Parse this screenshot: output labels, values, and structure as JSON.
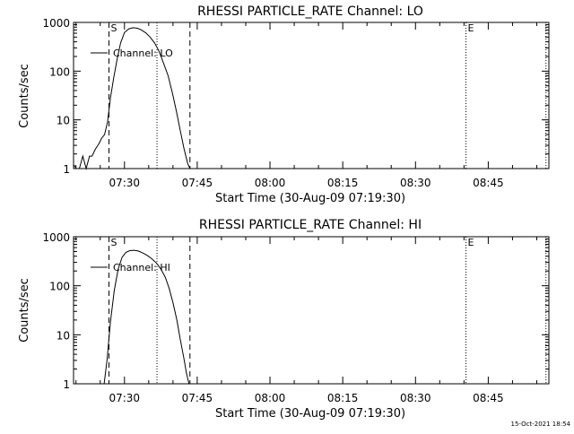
{
  "footer": {
    "timestamp": "15-Oct-2021 18:54"
  },
  "chart_data": [
    {
      "type": "line",
      "title": "RHESSI PARTICLE_RATE Channel: LO",
      "xlabel": "Start Time (30-Aug-09 07:19:30)",
      "ylabel": "Counts/sec",
      "xlim_minutes": [
        0,
        98
      ],
      "ylim": [
        1,
        1000
      ],
      "yscale": "log",
      "x_ticks": [
        {
          "label": "07:30",
          "value": 10.5
        },
        {
          "label": "07:45",
          "value": 25.5
        },
        {
          "label": "08:00",
          "value": 40.5
        },
        {
          "label": "08:15",
          "value": 55.5
        },
        {
          "label": "08:30",
          "value": 70.5
        },
        {
          "label": "08:45",
          "value": 85.5
        }
      ],
      "y_ticks": [
        {
          "label": "1",
          "value": 1
        },
        {
          "label": "10",
          "value": 10
        },
        {
          "label": "100",
          "value": 100
        },
        {
          "label": "1000",
          "value": 1000
        }
      ],
      "markers": [
        {
          "label": "S",
          "x": 7.3,
          "style": "dashed"
        },
        {
          "label": "",
          "x": 17.2,
          "style": "dotted"
        },
        {
          "label": "",
          "x": 24.0,
          "style": "dashed"
        },
        {
          "label": "E",
          "x": 80.9,
          "style": "dotted"
        },
        {
          "label": "",
          "x": 97.4,
          "style": "dotted"
        }
      ],
      "legend": {
        "label": "Channel: LO",
        "position": "top-left"
      },
      "series": [
        {
          "name": "Channel: LO",
          "x": [
            0.0,
            0.6,
            1.2,
            1.9,
            2.6,
            3.3,
            3.8,
            4.5,
            5.2,
            5.8,
            6.4,
            7.0,
            7.6,
            8.3,
            9.0,
            9.7,
            10.5,
            11.4,
            12.3,
            13.2,
            14.0,
            14.9,
            15.8,
            16.7,
            17.6,
            18.5,
            19.5,
            20.4,
            21.2,
            22.0,
            22.8,
            23.5,
            24.0
          ],
          "y": [
            1.2,
            1.0,
            1.0,
            1.8,
            1.0,
            1.8,
            1.8,
            2.5,
            3.2,
            4.2,
            5.0,
            9.0,
            28.0,
            75.0,
            180.0,
            380.0,
            620.0,
            740.0,
            780.0,
            760.0,
            700.0,
            610.0,
            500.0,
            380.0,
            260.0,
            150.0,
            80.0,
            35.0,
            15.0,
            6.0,
            2.5,
            1.3,
            1.0
          ]
        }
      ]
    },
    {
      "type": "line",
      "title": "RHESSI PARTICLE_RATE Channel: HI",
      "xlabel": "Start Time (30-Aug-09 07:19:30)",
      "ylabel": "Counts/sec",
      "xlim_minutes": [
        0,
        98
      ],
      "ylim": [
        1,
        1000
      ],
      "yscale": "log",
      "x_ticks": [
        {
          "label": "07:30",
          "value": 10.5
        },
        {
          "label": "07:45",
          "value": 25.5
        },
        {
          "label": "08:00",
          "value": 40.5
        },
        {
          "label": "08:15",
          "value": 55.5
        },
        {
          "label": "08:30",
          "value": 70.5
        },
        {
          "label": "08:45",
          "value": 85.5
        }
      ],
      "y_ticks": [
        {
          "label": "1",
          "value": 1
        },
        {
          "label": "10",
          "value": 10
        },
        {
          "label": "100",
          "value": 100
        },
        {
          "label": "1000",
          "value": 1000
        }
      ],
      "markers": [
        {
          "label": "S",
          "x": 7.3,
          "style": "dashed"
        },
        {
          "label": "",
          "x": 17.2,
          "style": "dotted"
        },
        {
          "label": "",
          "x": 24.0,
          "style": "dashed"
        },
        {
          "label": "E",
          "x": 80.9,
          "style": "dotted"
        },
        {
          "label": "",
          "x": 97.4,
          "style": "dotted"
        }
      ],
      "legend": {
        "label": "Channel: HI",
        "position": "top-left"
      },
      "series": [
        {
          "name": "Channel: HI",
          "x": [
            6.3,
            6.9,
            7.6,
            8.4,
            9.2,
            10.0,
            10.8,
            11.6,
            12.5,
            13.4,
            14.4,
            15.3,
            16.2,
            17.1,
            18.0,
            18.9,
            19.7,
            20.5,
            21.3,
            22.0,
            22.7,
            23.3,
            23.8
          ],
          "y": [
            1.0,
            3.0,
            18.0,
            80.0,
            220.0,
            380.0,
            480.0,
            520.0,
            530.0,
            510.0,
            460.0,
            410.0,
            350.0,
            290.0,
            220.0,
            150.0,
            90.0,
            45.0,
            20.0,
            8.0,
            3.5,
            1.6,
            1.0
          ]
        }
      ]
    }
  ]
}
